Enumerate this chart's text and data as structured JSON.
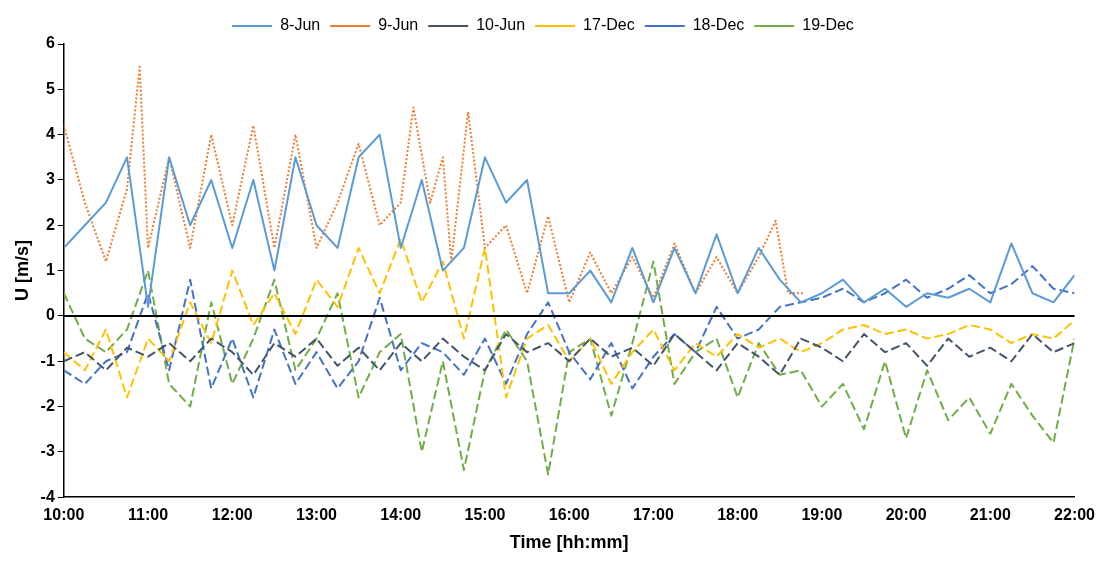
{
  "chart_data": {
    "type": "line",
    "xlabel": "Time [hh:mm]",
    "ylabel": "U [m/s]",
    "legend": "top",
    "grid": false,
    "marker": "none",
    "x": [
      10,
      10.25,
      10.5,
      10.75,
      11,
      11.25,
      11.5,
      11.75,
      12,
      12.25,
      12.5,
      12.75,
      13,
      13.25,
      13.5,
      13.75,
      14,
      14.25,
      14.5,
      14.75,
      15,
      15.25,
      15.5,
      15.75,
      16,
      16.25,
      16.5,
      16.75,
      17,
      17.25,
      17.5,
      17.75,
      18,
      18.25,
      18.5,
      18.75,
      19,
      19.25,
      19.5,
      19.75,
      20,
      20.25,
      20.5,
      20.75,
      21,
      21.25,
      21.5,
      21.75,
      22
    ],
    "xlim": [
      10,
      22
    ],
    "xticks": [
      {
        "value": 10,
        "label": "10:00"
      },
      {
        "value": 11,
        "label": "11:00"
      },
      {
        "value": 12,
        "label": "12:00"
      },
      {
        "value": 13,
        "label": "13:00"
      },
      {
        "value": 14,
        "label": "14:00"
      },
      {
        "value": 15,
        "label": "15:00"
      },
      {
        "value": 16,
        "label": "16:00"
      },
      {
        "value": 17,
        "label": "17:00"
      },
      {
        "value": 18,
        "label": "18:00"
      },
      {
        "value": 19,
        "label": "19:00"
      },
      {
        "value": 20,
        "label": "20:00"
      },
      {
        "value": 21,
        "label": "21:00"
      },
      {
        "value": 22,
        "label": "22:00"
      }
    ],
    "ylim": [
      -4,
      6
    ],
    "yticks": [
      -4,
      -3,
      -2,
      -1,
      0,
      1,
      2,
      3,
      4,
      5,
      6
    ],
    "ref_lines": [
      {
        "axis": "y",
        "value": 0,
        "color": "#000000"
      }
    ],
    "series": [
      {
        "name": "8-Jun",
        "color": "#5b9bd5",
        "line_style": "solid",
        "values": [
          1.5,
          2.0,
          2.5,
          3.5,
          0.2,
          3.5,
          2.0,
          3.0,
          1.5,
          3.0,
          1.0,
          3.5,
          2.0,
          1.5,
          3.5,
          4.0,
          1.5,
          3.0,
          1.0,
          1.5,
          3.5,
          2.5,
          3.0,
          0.5,
          0.5,
          1.0,
          0.3,
          1.5,
          0.3,
          1.5,
          0.5,
          1.8,
          0.5,
          1.5,
          0.8,
          0.3,
          0.5,
          0.8,
          0.3,
          0.6,
          0.2,
          0.5,
          0.4,
          0.6,
          0.3,
          1.6,
          0.5,
          0.3,
          0.9
        ]
      },
      {
        "name": "9-Jun",
        "color": "#ed7d31",
        "line_style": "dotted",
        "x": [
          10,
          10.25,
          10.5,
          10.75,
          10.9,
          11,
          11.25,
          11.5,
          11.75,
          12,
          12.25,
          12.5,
          12.75,
          13,
          13.25,
          13.5,
          13.75,
          14,
          14.15,
          14.35,
          14.5,
          14.6,
          14.8,
          15,
          15.25,
          15.5,
          15.75,
          16,
          16.25,
          16.5,
          16.75,
          17,
          17.25,
          17.5,
          17.75,
          18,
          18.25,
          18.45,
          18.6,
          18.8
        ],
        "values": [
          4.2,
          2.5,
          1.2,
          2.8,
          5.5,
          1.5,
          3.5,
          1.5,
          4.0,
          2.0,
          4.2,
          1.5,
          4.0,
          1.5,
          2.5,
          3.8,
          2.0,
          2.5,
          4.6,
          2.5,
          3.5,
          1.2,
          4.5,
          1.5,
          2.0,
          0.5,
          2.2,
          0.3,
          1.4,
          0.5,
          1.3,
          0.4,
          1.6,
          0.5,
          1.3,
          0.5,
          1.3,
          2.1,
          0.5,
          0.5
        ]
      },
      {
        "name": "10-Jun",
        "color": "#44546a",
        "line_style": "dashed",
        "values": [
          -1.0,
          -0.8,
          -1.2,
          -0.7,
          -0.9,
          -0.6,
          -1.0,
          -0.5,
          -0.8,
          -1.3,
          -0.6,
          -0.9,
          -0.5,
          -1.1,
          -0.7,
          -1.2,
          -0.6,
          -1.0,
          -0.5,
          -0.9,
          -1.2,
          -0.4,
          -0.8,
          -0.6,
          -1.0,
          -0.5,
          -0.9,
          -0.7,
          -1.1,
          -0.4,
          -0.8,
          -1.2,
          -0.6,
          -0.9,
          -1.3,
          -0.5,
          -0.7,
          -1.0,
          -0.4,
          -0.8,
          -0.6,
          -1.1,
          -0.5,
          -0.9,
          -0.7,
          -1.0,
          -0.4,
          -0.8,
          -0.6
        ]
      },
      {
        "name": "17-Dec",
        "color": "#ffc000",
        "line_style": "dashed",
        "values": [
          -0.8,
          -1.2,
          -0.3,
          -1.8,
          -0.5,
          -1.0,
          0.3,
          -0.6,
          1.0,
          -0.2,
          0.5,
          -0.4,
          0.8,
          0.2,
          1.5,
          0.5,
          1.7,
          0.3,
          1.2,
          -0.5,
          1.5,
          -1.8,
          -0.5,
          -0.2,
          -1.0,
          -0.5,
          -1.5,
          -0.8,
          -0.3,
          -1.2,
          -0.6,
          -0.9,
          -0.4,
          -0.7,
          -0.5,
          -0.8,
          -0.6,
          -0.3,
          -0.2,
          -0.4,
          -0.3,
          -0.5,
          -0.4,
          -0.2,
          -0.3,
          -0.6,
          -0.4,
          -0.5,
          -0.1
        ]
      },
      {
        "name": "18-Dec",
        "color": "#4472c4",
        "line_style": "dashed",
        "values": [
          -1.2,
          -1.5,
          -1.0,
          -0.8,
          0.5,
          -1.2,
          0.8,
          -1.6,
          -0.5,
          -1.8,
          -0.3,
          -1.5,
          -0.8,
          -1.6,
          -1.0,
          0.4,
          -1.2,
          -0.6,
          -0.8,
          -1.3,
          -0.5,
          -1.5,
          -0.4,
          0.3,
          -0.8,
          -1.4,
          -0.6,
          -1.6,
          -0.9,
          -0.4,
          -0.8,
          0.2,
          -0.5,
          -0.3,
          0.2,
          0.3,
          0.4,
          0.6,
          0.3,
          0.5,
          0.8,
          0.4,
          0.6,
          0.9,
          0.5,
          0.7,
          1.1,
          0.6,
          0.5
        ]
      },
      {
        "name": "19-Dec",
        "color": "#70ad47",
        "line_style": "dashed",
        "values": [
          0.5,
          -0.5,
          -0.8,
          -0.3,
          1.0,
          -1.5,
          -2.0,
          0.3,
          -1.5,
          -0.5,
          0.8,
          -1.2,
          -0.5,
          0.5,
          -1.8,
          -0.8,
          -0.4,
          -3.0,
          -1.0,
          -3.4,
          -1.2,
          -0.3,
          -1.0,
          -3.5,
          -0.8,
          -0.5,
          -2.2,
          -0.6,
          1.2,
          -1.5,
          -0.8,
          -0.5,
          -1.8,
          -0.6,
          -1.3,
          -1.2,
          -2.0,
          -1.5,
          -2.5,
          -1.0,
          -2.7,
          -1.2,
          -2.3,
          -1.8,
          -2.6,
          -1.5,
          -2.2,
          -2.8,
          -0.5
        ]
      }
    ]
  }
}
